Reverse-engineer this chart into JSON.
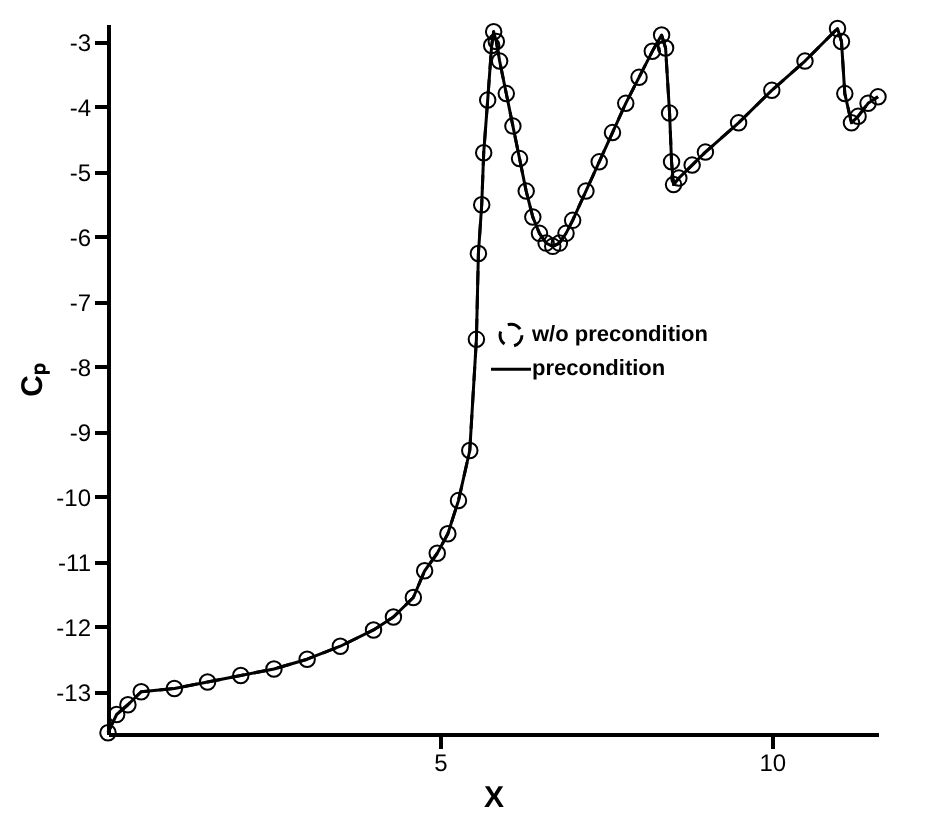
{
  "chart_data": {
    "type": "line",
    "xlabel": "X",
    "ylabel": "Cₚ",
    "x": [
      0,
      0.13,
      0.3,
      0.5,
      1.0,
      1.5,
      2.0,
      2.5,
      3.0,
      3.5,
      4.0,
      4.3,
      4.6,
      4.77,
      4.96,
      5.12,
      5.28,
      5.45,
      5.55,
      5.58,
      5.63,
      5.66,
      5.72,
      5.78,
      5.81,
      5.85,
      5.9,
      6.0,
      6.1,
      6.2,
      6.3,
      6.4,
      6.5,
      6.6,
      6.7,
      6.8,
      6.9,
      7.0,
      7.2,
      7.4,
      7.6,
      7.8,
      8.0,
      8.2,
      8.34,
      8.4,
      8.46,
      8.49,
      8.52,
      8.6,
      8.8,
      9.0,
      9.5,
      10.0,
      10.5,
      10.99,
      11.05,
      11.1,
      11.2,
      11.3,
      11.45,
      11.6
    ],
    "series": [
      {
        "name": "w/o precondition",
        "color": "#000000",
        "marker": "circle",
        "line_style": "dashed",
        "values": [
          -13.63,
          -13.35,
          -13.2,
          -13.0,
          -12.95,
          -12.85,
          -12.75,
          -12.65,
          -12.5,
          -12.3,
          -12.05,
          -11.85,
          -11.55,
          -11.14,
          -10.87,
          -10.57,
          -10.06,
          -9.29,
          -7.58,
          -6.26,
          -5.51,
          -4.71,
          -3.9,
          -3.06,
          -2.85,
          -3.0,
          -3.3,
          -3.8,
          -4.3,
          -4.8,
          -5.3,
          -5.7,
          -5.95,
          -6.1,
          -6.15,
          -6.1,
          -5.95,
          -5.75,
          -5.3,
          -4.85,
          -4.4,
          -3.95,
          -3.55,
          -3.15,
          -2.9,
          -3.1,
          -4.1,
          -4.85,
          -5.2,
          -5.1,
          -4.9,
          -4.7,
          -4.25,
          -3.75,
          -3.3,
          -2.8,
          -3.0,
          -3.8,
          -4.25,
          -4.15,
          -3.95,
          -3.85
        ]
      },
      {
        "name": "precondition",
        "color": "#000000",
        "marker": "none",
        "line_style": "solid",
        "values": [
          -13.63,
          -13.35,
          -13.2,
          -13.0,
          -12.95,
          -12.85,
          -12.75,
          -12.65,
          -12.5,
          -12.3,
          -12.05,
          -11.85,
          -11.55,
          -11.14,
          -10.87,
          -10.57,
          -10.06,
          -9.29,
          -7.58,
          -6.26,
          -5.51,
          -4.71,
          -3.9,
          -3.06,
          -2.85,
          -3.0,
          -3.3,
          -3.8,
          -4.3,
          -4.8,
          -5.3,
          -5.7,
          -5.95,
          -6.1,
          -6.15,
          -6.1,
          -5.95,
          -5.75,
          -5.3,
          -4.85,
          -4.4,
          -3.95,
          -3.55,
          -3.15,
          -2.9,
          -3.1,
          -4.1,
          -4.85,
          -5.2,
          -5.1,
          -4.9,
          -4.7,
          -4.25,
          -3.75,
          -3.3,
          -2.8,
          -3.0,
          -3.8,
          -4.25,
          -4.15,
          -3.95,
          -3.85
        ]
      }
    ],
    "xlim": [
      0,
      11.6
    ],
    "xticks": [
      5,
      10
    ],
    "ylim": [
      -13.65,
      -2.73
    ],
    "yticks": [
      -13,
      -12,
      -11,
      -10,
      -9,
      -8,
      -7,
      -6,
      -5,
      -4,
      -3
    ],
    "grid": false,
    "legend": "right"
  }
}
